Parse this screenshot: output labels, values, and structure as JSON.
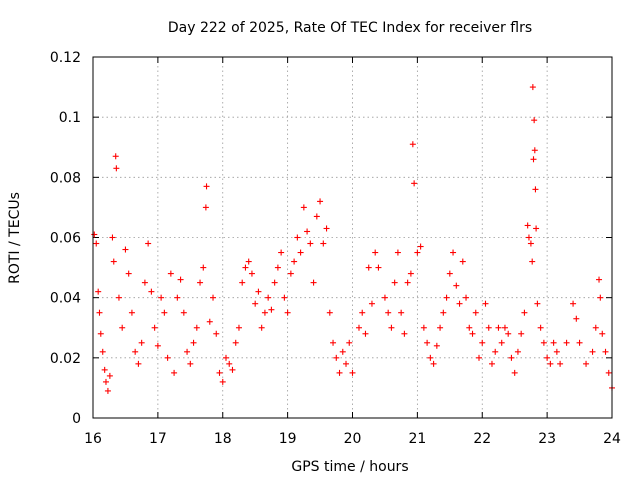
{
  "chart_data": {
    "type": "scatter",
    "title": "Day 222 of 2025, Rate Of TEC Index for receiver flrs",
    "xlabel": "GPS time / hours",
    "ylabel": "ROTI / TECUs",
    "xlim": [
      16,
      24
    ],
    "ylim": [
      0,
      0.12
    ],
    "x_ticks": [
      16,
      17,
      18,
      19,
      20,
      21,
      22,
      23,
      24
    ],
    "x_tick_labels": [
      "16",
      "17",
      "18",
      "19",
      "20",
      "21",
      "22",
      "23",
      "24"
    ],
    "y_ticks": [
      0,
      0.02,
      0.04,
      0.06,
      0.08,
      0.1,
      0.12
    ],
    "y_tick_labels": [
      "0",
      "0.02",
      "0.04",
      "0.06",
      "0.08",
      "0.1",
      "0.12"
    ],
    "grid": true,
    "marker": "plus",
    "color": "#ff0000",
    "series": [
      {
        "name": "ROTI",
        "points": [
          [
            16.02,
            0.061
          ],
          [
            16.05,
            0.058
          ],
          [
            16.08,
            0.042
          ],
          [
            16.1,
            0.035
          ],
          [
            16.12,
            0.028
          ],
          [
            16.15,
            0.022
          ],
          [
            16.18,
            0.016
          ],
          [
            16.2,
            0.012
          ],
          [
            16.23,
            0.009
          ],
          [
            16.26,
            0.014
          ],
          [
            16.3,
            0.06
          ],
          [
            16.32,
            0.052
          ],
          [
            16.35,
            0.087
          ],
          [
            16.36,
            0.083
          ],
          [
            16.4,
            0.04
          ],
          [
            16.45,
            0.03
          ],
          [
            16.5,
            0.056
          ],
          [
            16.55,
            0.048
          ],
          [
            16.6,
            0.035
          ],
          [
            16.65,
            0.022
          ],
          [
            16.7,
            0.018
          ],
          [
            16.75,
            0.025
          ],
          [
            16.8,
            0.045
          ],
          [
            16.85,
            0.058
          ],
          [
            16.9,
            0.042
          ],
          [
            16.95,
            0.03
          ],
          [
            17.0,
            0.024
          ],
          [
            17.05,
            0.04
          ],
          [
            17.1,
            0.035
          ],
          [
            17.15,
            0.02
          ],
          [
            17.2,
            0.048
          ],
          [
            17.25,
            0.015
          ],
          [
            17.3,
            0.04
          ],
          [
            17.35,
            0.046
          ],
          [
            17.4,
            0.035
          ],
          [
            17.45,
            0.022
          ],
          [
            17.5,
            0.018
          ],
          [
            17.55,
            0.025
          ],
          [
            17.6,
            0.03
          ],
          [
            17.65,
            0.045
          ],
          [
            17.7,
            0.05
          ],
          [
            17.75,
            0.077
          ],
          [
            17.74,
            0.07
          ],
          [
            17.8,
            0.032
          ],
          [
            17.85,
            0.04
          ],
          [
            17.9,
            0.028
          ],
          [
            17.95,
            0.015
          ],
          [
            18.0,
            0.012
          ],
          [
            18.05,
            0.02
          ],
          [
            18.1,
            0.018
          ],
          [
            18.15,
            0.016
          ],
          [
            18.2,
            0.025
          ],
          [
            18.25,
            0.03
          ],
          [
            18.3,
            0.045
          ],
          [
            18.35,
            0.05
          ],
          [
            18.4,
            0.052
          ],
          [
            18.45,
            0.048
          ],
          [
            18.5,
            0.038
          ],
          [
            18.55,
            0.042
          ],
          [
            18.6,
            0.03
          ],
          [
            18.65,
            0.035
          ],
          [
            18.7,
            0.04
          ],
          [
            18.75,
            0.036
          ],
          [
            18.8,
            0.045
          ],
          [
            18.85,
            0.05
          ],
          [
            18.9,
            0.055
          ],
          [
            18.95,
            0.04
          ],
          [
            19.0,
            0.035
          ],
          [
            19.05,
            0.048
          ],
          [
            19.1,
            0.052
          ],
          [
            19.15,
            0.06
          ],
          [
            19.2,
            0.055
          ],
          [
            19.25,
            0.07
          ],
          [
            19.3,
            0.062
          ],
          [
            19.35,
            0.058
          ],
          [
            19.4,
            0.045
          ],
          [
            19.45,
            0.067
          ],
          [
            19.5,
            0.072
          ],
          [
            19.55,
            0.058
          ],
          [
            19.6,
            0.063
          ],
          [
            19.65,
            0.035
          ],
          [
            19.7,
            0.025
          ],
          [
            19.75,
            0.02
          ],
          [
            19.8,
            0.015
          ],
          [
            19.85,
            0.022
          ],
          [
            19.9,
            0.018
          ],
          [
            19.95,
            0.025
          ],
          [
            20.0,
            0.015
          ],
          [
            20.1,
            0.03
          ],
          [
            20.15,
            0.035
          ],
          [
            20.2,
            0.028
          ],
          [
            20.25,
            0.05
          ],
          [
            20.3,
            0.038
          ],
          [
            20.35,
            0.055
          ],
          [
            20.4,
            0.05
          ],
          [
            20.5,
            0.04
          ],
          [
            20.55,
            0.035
          ],
          [
            20.6,
            0.03
          ],
          [
            20.65,
            0.045
          ],
          [
            20.7,
            0.055
          ],
          [
            20.75,
            0.035
          ],
          [
            20.8,
            0.028
          ],
          [
            20.85,
            0.045
          ],
          [
            20.9,
            0.048
          ],
          [
            20.93,
            0.091
          ],
          [
            20.95,
            0.078
          ],
          [
            21.0,
            0.055
          ],
          [
            21.05,
            0.057
          ],
          [
            21.1,
            0.03
          ],
          [
            21.15,
            0.025
          ],
          [
            21.2,
            0.02
          ],
          [
            21.25,
            0.018
          ],
          [
            21.3,
            0.024
          ],
          [
            21.35,
            0.03
          ],
          [
            21.4,
            0.035
          ],
          [
            21.45,
            0.04
          ],
          [
            21.5,
            0.048
          ],
          [
            21.55,
            0.055
          ],
          [
            21.6,
            0.044
          ],
          [
            21.65,
            0.038
          ],
          [
            21.7,
            0.052
          ],
          [
            21.75,
            0.04
          ],
          [
            21.8,
            0.03
          ],
          [
            21.85,
            0.028
          ],
          [
            21.9,
            0.035
          ],
          [
            21.95,
            0.02
          ],
          [
            22.0,
            0.025
          ],
          [
            22.05,
            0.038
          ],
          [
            22.1,
            0.03
          ],
          [
            22.15,
            0.018
          ],
          [
            22.2,
            0.022
          ],
          [
            22.25,
            0.03
          ],
          [
            22.3,
            0.025
          ],
          [
            22.35,
            0.03
          ],
          [
            22.4,
            0.028
          ],
          [
            22.45,
            0.02
          ],
          [
            22.5,
            0.015
          ],
          [
            22.55,
            0.022
          ],
          [
            22.6,
            0.028
          ],
          [
            22.65,
            0.035
          ],
          [
            22.7,
            0.064
          ],
          [
            22.72,
            0.06
          ],
          [
            22.75,
            0.058
          ],
          [
            22.77,
            0.052
          ],
          [
            22.78,
            0.11
          ],
          [
            22.8,
            0.099
          ],
          [
            22.81,
            0.089
          ],
          [
            22.79,
            0.086
          ],
          [
            22.82,
            0.076
          ],
          [
            22.83,
            0.063
          ],
          [
            22.85,
            0.038
          ],
          [
            22.9,
            0.03
          ],
          [
            22.95,
            0.025
          ],
          [
            23.0,
            0.02
          ],
          [
            23.05,
            0.018
          ],
          [
            23.1,
            0.025
          ],
          [
            23.15,
            0.022
          ],
          [
            23.2,
            0.018
          ],
          [
            23.3,
            0.025
          ],
          [
            23.4,
            0.038
          ],
          [
            23.45,
            0.033
          ],
          [
            23.5,
            0.025
          ],
          [
            23.6,
            0.018
          ],
          [
            23.7,
            0.022
          ],
          [
            23.75,
            0.03
          ],
          [
            23.8,
            0.046
          ],
          [
            23.82,
            0.04
          ],
          [
            23.85,
            0.028
          ],
          [
            23.9,
            0.022
          ],
          [
            23.95,
            0.015
          ],
          [
            24.0,
            0.01
          ]
        ]
      }
    ]
  }
}
